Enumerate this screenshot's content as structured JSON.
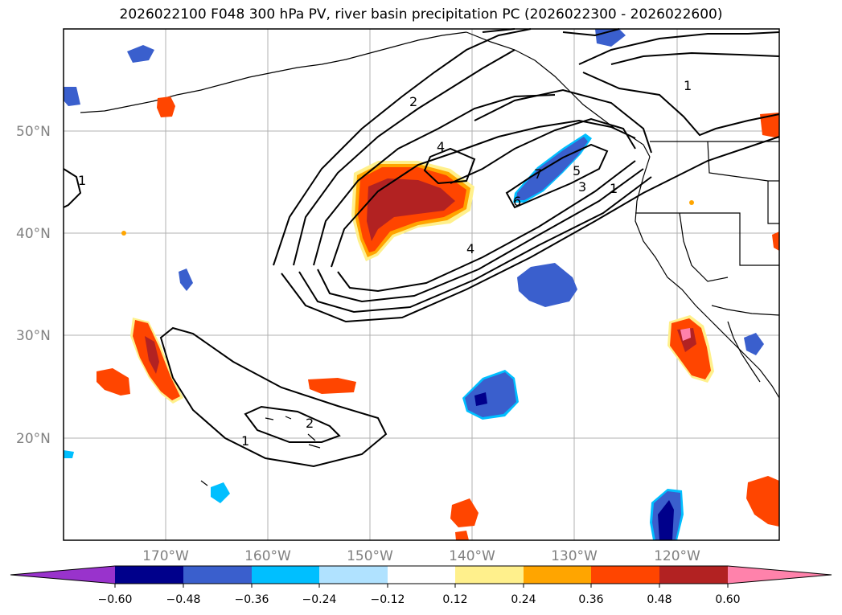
{
  "title": "2026022100 F048 300 hPa PV, river basin precipitation PC (2026022300 - 2026022600)",
  "map": {
    "lon_range": [
      -180,
      -110
    ],
    "lat_range": [
      10,
      60
    ],
    "lat_labels": [
      "50°N",
      "40°N",
      "30°N",
      "20°N"
    ],
    "lon_labels": [
      "170°W",
      "160°W",
      "150°W",
      "140°W",
      "130°W",
      "120°W"
    ],
    "pv_contour_labels": [
      "1",
      "2",
      "4",
      "2",
      "1",
      "1",
      "7",
      "5",
      "3",
      "6",
      "4",
      "1"
    ]
  },
  "colorbar": {
    "tick_labels": [
      "−0.60",
      "−0.48",
      "−0.36",
      "−0.24",
      "−0.12",
      "0.12",
      "0.24",
      "0.36",
      "0.48",
      "0.60"
    ],
    "colors": {
      "neg_extend": "#9933cc",
      "lev1": "#00008b",
      "lev2": "#3a5fcd",
      "lev3": "#00bfff",
      "lev4": "#b0e2ff",
      "neutral": "#ffffff",
      "pos1": "#fff08c",
      "pos2": "#ffa500",
      "pos3": "#ff4500",
      "pos4": "#b22222",
      "pos_extend": "#ff82ab"
    }
  }
}
